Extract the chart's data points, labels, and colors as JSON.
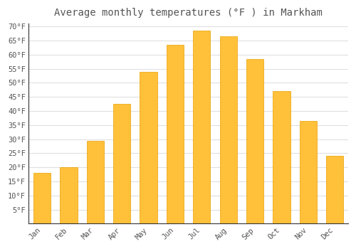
{
  "title": "Average monthly temperatures (°F ) in Markham",
  "months": [
    "Jan",
    "Feb",
    "Mar",
    "Apr",
    "May",
    "Jun",
    "Jul",
    "Aug",
    "Sep",
    "Oct",
    "Nov",
    "Dec"
  ],
  "values": [
    18,
    20,
    29.5,
    42.5,
    54,
    63.5,
    68.5,
    66.5,
    58.5,
    47,
    36.5,
    24
  ],
  "bar_color": "#FFC03A",
  "bar_edge_color": "#E8A000",
  "background_color": "#FFFFFF",
  "plot_bg_color": "#FFFFFF",
  "grid_color": "#E0E0E0",
  "text_color": "#555555",
  "axis_color": "#333333",
  "ylim": [
    0,
    71
  ],
  "yticks": [
    5,
    10,
    15,
    20,
    25,
    30,
    35,
    40,
    45,
    50,
    55,
    60,
    65,
    70
  ],
  "title_fontsize": 10,
  "tick_fontsize": 7.5,
  "bar_width": 0.65
}
